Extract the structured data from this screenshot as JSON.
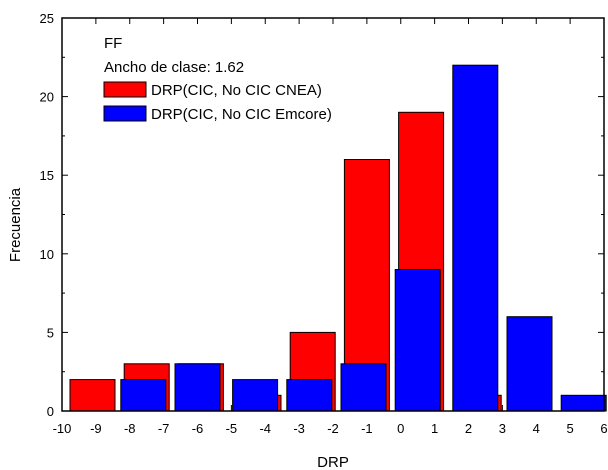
{
  "chart_data": {
    "type": "bar",
    "annotations": [
      "FF",
      "Ancho de clase: 1.62"
    ],
    "xlabel": "DRP",
    "ylabel": "Frecuencia",
    "xlim": [
      -10,
      6
    ],
    "ylim": [
      0,
      25
    ],
    "xticks": [
      -10,
      -9,
      -8,
      -7,
      -6,
      -5,
      -4,
      -3,
      -2,
      -1,
      0,
      1,
      2,
      3,
      4,
      5,
      6
    ],
    "yticks": [
      0,
      5,
      10,
      15,
      20,
      25
    ],
    "bin_width": 1.62,
    "legend_position": "top-left",
    "series": [
      {
        "name": "DRP(CIC, No CIC CNEA)",
        "color": "#ff0000",
        "x": [
          -9.1,
          -7.5,
          -5.9,
          -4.2,
          -2.6,
          -1.0,
          0.6,
          2.3
        ],
        "values": [
          2,
          3,
          3,
          1,
          5,
          16,
          19,
          1
        ]
      },
      {
        "name": "DRP(CIC, No CIC Emcore)",
        "color": "#0000ff",
        "x": [
          -7.6,
          -6.0,
          -4.3,
          -2.7,
          -1.1,
          0.5,
          2.2,
          3.8,
          5.4
        ],
        "values": [
          2,
          3,
          2,
          2,
          3,
          9,
          22,
          6,
          1
        ]
      }
    ]
  }
}
